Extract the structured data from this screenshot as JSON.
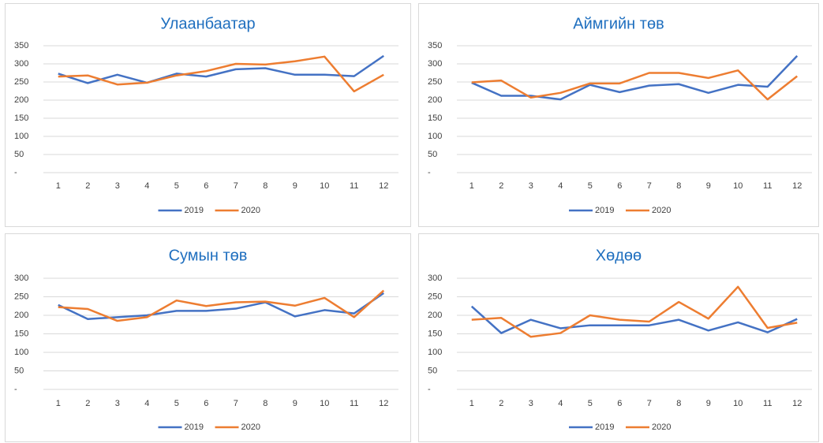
{
  "chart_data": [
    {
      "type": "line",
      "title": "Улаанбаатар",
      "categories": [
        1,
        2,
        3,
        4,
        5,
        6,
        7,
        8,
        9,
        10,
        11,
        12
      ],
      "series": [
        {
          "name": "2019",
          "color": "#4472c4",
          "values": [
            273,
            247,
            270,
            248,
            273,
            265,
            285,
            288,
            270,
            270,
            266,
            322
          ]
        },
        {
          "name": "2020",
          "color": "#ed7d31",
          "values": [
            265,
            268,
            243,
            248,
            268,
            280,
            300,
            298,
            307,
            320,
            224,
            270
          ]
        }
      ],
      "ylim": [
        0,
        350
      ],
      "yticks": [
        {
          "value": 0,
          "label": "-"
        },
        50,
        100,
        150,
        200,
        250,
        300,
        350
      ],
      "grid": true
    },
    {
      "type": "line",
      "title": "Аймгийн төв",
      "categories": [
        1,
        2,
        3,
        4,
        5,
        6,
        7,
        8,
        9,
        10,
        11,
        12
      ],
      "series": [
        {
          "name": "2019",
          "color": "#4472c4",
          "values": [
            248,
            212,
            212,
            202,
            242,
            222,
            240,
            244,
            220,
            242,
            237,
            322
          ]
        },
        {
          "name": "2020",
          "color": "#ed7d31",
          "values": [
            249,
            254,
            207,
            220,
            246,
            246,
            275,
            275,
            261,
            282,
            202,
            266
          ]
        }
      ],
      "ylim": [
        0,
        350
      ],
      "yticks": [
        {
          "value": 0,
          "label": "-"
        },
        50,
        100,
        150,
        200,
        250,
        300,
        350
      ],
      "grid": true
    },
    {
      "type": "line",
      "title": "Сумын төв",
      "categories": [
        1,
        2,
        3,
        4,
        5,
        6,
        7,
        8,
        9,
        10,
        11,
        12
      ],
      "series": [
        {
          "name": "2019",
          "color": "#4472c4",
          "values": [
            228,
            190,
            195,
            200,
            212,
            212,
            218,
            235,
            197,
            214,
            205,
            260
          ]
        },
        {
          "name": "2020",
          "color": "#ed7d31",
          "values": [
            222,
            217,
            185,
            195,
            240,
            225,
            235,
            237,
            226,
            247,
            195,
            267
          ]
        }
      ],
      "ylim": [
        0,
        300
      ],
      "yticks": [
        {
          "value": 0,
          "label": "-"
        },
        50,
        100,
        150,
        200,
        250,
        300
      ],
      "grid": true
    },
    {
      "type": "line",
      "title": "Хөдөө",
      "categories": [
        1,
        2,
        3,
        4,
        5,
        6,
        7,
        8,
        9,
        10,
        11,
        12
      ],
      "series": [
        {
          "name": "2019",
          "color": "#4472c4",
          "values": [
            224,
            152,
            188,
            165,
            173,
            173,
            173,
            188,
            159,
            181,
            154,
            190
          ]
        },
        {
          "name": "2020",
          "color": "#ed7d31",
          "values": [
            188,
            193,
            142,
            152,
            200,
            188,
            183,
            236,
            191,
            277,
            166,
            180
          ]
        }
      ],
      "ylim": [
        0,
        300
      ],
      "yticks": [
        {
          "value": 0,
          "label": "-"
        },
        50,
        100,
        150,
        200,
        250,
        300
      ],
      "grid": true
    }
  ]
}
